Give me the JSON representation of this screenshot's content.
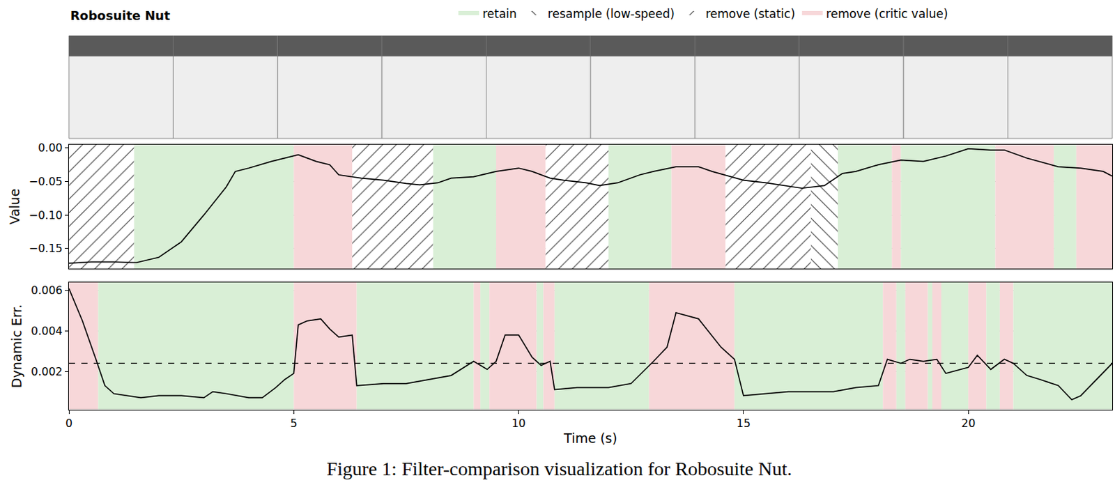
{
  "title": "Robosuite Nut",
  "caption": "Figure 1: Filter-comparison visualization for Robosuite Nut.",
  "legend": "top",
  "region_types": [
    {
      "name": "retain",
      "color": "#d9efd6",
      "marker": "none"
    },
    {
      "name": "resample (low-speed)",
      "color": "#ffffff",
      "marker": "\\"
    },
    {
      "name": "remove (static)",
      "color": "#ffffff",
      "marker": "/"
    },
    {
      "name": "remove (critic value)",
      "color": "#f7d7d9",
      "marker": "none"
    }
  ],
  "chart_data": [
    {
      "type": "line",
      "ylabel": "Value",
      "xlim": [
        0,
        23.2
      ],
      "ylim": [
        -0.18,
        0.005
      ],
      "yticks": [
        {
          "value": 0,
          "label": "0.00"
        },
        {
          "value": -0.05,
          "label": "−0.05"
        },
        {
          "value": -0.1,
          "label": "−0.10"
        },
        {
          "value": -0.15,
          "label": "−0.15"
        }
      ],
      "grid": true,
      "tick_labels": "y",
      "color": "#000000",
      "x": [
        0,
        0.5,
        1.0,
        1.5,
        2.0,
        2.5,
        3.0,
        3.5,
        3.7,
        4.0,
        4.5,
        5.0,
        5.1,
        5.5,
        5.8,
        6.0,
        6.5,
        7.0,
        7.5,
        7.8,
        8.2,
        8.5,
        9.0,
        9.5,
        10.0,
        10.3,
        10.7,
        11.0,
        11.5,
        11.8,
        12.2,
        12.7,
        13.0,
        13.5,
        14.0,
        14.3,
        15.0,
        15.5,
        16.0,
        16.3,
        16.8,
        17.2,
        17.5,
        18.0,
        18.5,
        19.0,
        19.5,
        20.0,
        20.5,
        20.8,
        21.3,
        22.0,
        22.5,
        23.0,
        23.2
      ],
      "values": [
        -0.172,
        -0.17,
        -0.17,
        -0.171,
        -0.163,
        -0.14,
        -0.1,
        -0.058,
        -0.035,
        -0.03,
        -0.02,
        -0.012,
        -0.01,
        -0.02,
        -0.025,
        -0.04,
        -0.045,
        -0.048,
        -0.053,
        -0.055,
        -0.052,
        -0.045,
        -0.043,
        -0.035,
        -0.03,
        -0.035,
        -0.045,
        -0.048,
        -0.052,
        -0.056,
        -0.052,
        -0.04,
        -0.035,
        -0.028,
        -0.028,
        -0.035,
        -0.048,
        -0.052,
        -0.057,
        -0.06,
        -0.056,
        -0.038,
        -0.035,
        -0.025,
        -0.018,
        -0.02,
        -0.012,
        -0.001,
        -0.003,
        -0.003,
        -0.015,
        -0.028,
        -0.03,
        -0.035,
        -0.042
      ],
      "regions": [
        {
          "start": 0,
          "end": 1.45,
          "type": "remove (static)"
        },
        {
          "start": 1.45,
          "end": 5.0,
          "type": "retain"
        },
        {
          "start": 5.0,
          "end": 6.3,
          "type": "remove (critic value)"
        },
        {
          "start": 6.3,
          "end": 8.1,
          "type": "remove (static)"
        },
        {
          "start": 8.1,
          "end": 9.5,
          "type": "retain"
        },
        {
          "start": 9.5,
          "end": 10.6,
          "type": "remove (critic value)"
        },
        {
          "start": 10.6,
          "end": 12.0,
          "type": "remove (static)"
        },
        {
          "start": 12.0,
          "end": 13.4,
          "type": "retain"
        },
        {
          "start": 13.4,
          "end": 14.6,
          "type": "remove (critic value)"
        },
        {
          "start": 14.6,
          "end": 16.5,
          "type": "remove (static)"
        },
        {
          "start": 16.5,
          "end": 17.1,
          "type": "resample (low-speed)"
        },
        {
          "start": 17.1,
          "end": 18.3,
          "type": "retain"
        },
        {
          "start": 18.3,
          "end": 18.5,
          "type": "remove (critic value)"
        },
        {
          "start": 18.5,
          "end": 20.6,
          "type": "retain"
        },
        {
          "start": 20.6,
          "end": 21.9,
          "type": "remove (critic value)"
        },
        {
          "start": 21.9,
          "end": 22.4,
          "type": "retain"
        },
        {
          "start": 22.4,
          "end": 23.2,
          "type": "remove (critic value)"
        }
      ]
    },
    {
      "type": "line",
      "xlabel": "Time (s)",
      "ylabel": "Dynamic Err.",
      "xlim": [
        0,
        23.2
      ],
      "xticks": [
        0,
        5,
        10,
        15,
        20
      ],
      "ylim": [
        0.0001,
        0.0064
      ],
      "yticks": [
        0.002,
        0.004,
        0.006
      ],
      "grid": true,
      "color": "#000000",
      "threshold": 0.0024,
      "x": [
        0,
        0.3,
        0.6,
        0.8,
        1.0,
        1.3,
        1.6,
        2.0,
        2.5,
        3.0,
        3.2,
        3.5,
        4.0,
        4.3,
        4.6,
        4.8,
        5.0,
        5.1,
        5.3,
        5.6,
        5.8,
        6.0,
        6.3,
        6.4,
        7.0,
        7.5,
        8.0,
        8.5,
        9.0,
        9.3,
        9.5,
        9.7,
        10.0,
        10.3,
        10.5,
        10.7,
        10.8,
        11.3,
        12.0,
        12.5,
        13.0,
        13.3,
        13.5,
        14.0,
        14.5,
        14.8,
        15.0,
        15.5,
        16.0,
        17.0,
        17.5,
        18.0,
        18.2,
        18.5,
        18.7,
        19.0,
        19.3,
        19.5,
        20.0,
        20.2,
        20.5,
        20.8,
        21.0,
        21.3,
        21.6,
        22.0,
        22.3,
        22.5,
        23.2
      ],
      "values": [
        0.0061,
        0.0045,
        0.0026,
        0.0013,
        0.0009,
        0.0008,
        0.0007,
        0.0008,
        0.0008,
        0.0007,
        0.001,
        0.0009,
        0.0007,
        0.0007,
        0.0012,
        0.0016,
        0.0019,
        0.0043,
        0.0045,
        0.0046,
        0.0041,
        0.0037,
        0.0038,
        0.0013,
        0.0014,
        0.0014,
        0.0016,
        0.0018,
        0.0025,
        0.0021,
        0.0025,
        0.0038,
        0.0038,
        0.0027,
        0.0023,
        0.0025,
        0.0011,
        0.0012,
        0.0012,
        0.0014,
        0.0025,
        0.0032,
        0.0049,
        0.0046,
        0.0032,
        0.0026,
        0.0008,
        0.0009,
        0.001,
        0.001,
        0.0012,
        0.0013,
        0.0026,
        0.0024,
        0.0026,
        0.0025,
        0.0026,
        0.0019,
        0.0022,
        0.0028,
        0.0021,
        0.0026,
        0.0024,
        0.0018,
        0.0016,
        0.0013,
        0.0006,
        0.0008,
        0.0024
      ],
      "regions": [
        {
          "start": 0,
          "end": 0.65,
          "type": "remove (critic value)"
        },
        {
          "start": 0.65,
          "end": 5.0,
          "type": "retain"
        },
        {
          "start": 5.0,
          "end": 6.4,
          "type": "remove (critic value)"
        },
        {
          "start": 6.4,
          "end": 9.0,
          "type": "retain"
        },
        {
          "start": 9.0,
          "end": 9.15,
          "type": "remove (critic value)"
        },
        {
          "start": 9.15,
          "end": 9.35,
          "type": "retain"
        },
        {
          "start": 9.35,
          "end": 10.4,
          "type": "remove (critic value)"
        },
        {
          "start": 10.4,
          "end": 10.55,
          "type": "retain"
        },
        {
          "start": 10.55,
          "end": 10.8,
          "type": "remove (critic value)"
        },
        {
          "start": 10.8,
          "end": 12.9,
          "type": "retain"
        },
        {
          "start": 12.9,
          "end": 14.8,
          "type": "remove (critic value)"
        },
        {
          "start": 14.8,
          "end": 18.1,
          "type": "retain"
        },
        {
          "start": 18.1,
          "end": 18.4,
          "type": "remove (critic value)"
        },
        {
          "start": 18.4,
          "end": 18.6,
          "type": "retain"
        },
        {
          "start": 18.6,
          "end": 19.1,
          "type": "remove (critic value)"
        },
        {
          "start": 19.1,
          "end": 19.2,
          "type": "retain"
        },
        {
          "start": 19.2,
          "end": 19.4,
          "type": "remove (critic value)"
        },
        {
          "start": 19.4,
          "end": 20.0,
          "type": "retain"
        },
        {
          "start": 20.0,
          "end": 20.4,
          "type": "remove (critic value)"
        },
        {
          "start": 20.4,
          "end": 20.7,
          "type": "retain"
        },
        {
          "start": 20.7,
          "end": 21.0,
          "type": "remove (critic value)"
        },
        {
          "start": 21.0,
          "end": 23.2,
          "type": "retain"
        }
      ]
    }
  ]
}
